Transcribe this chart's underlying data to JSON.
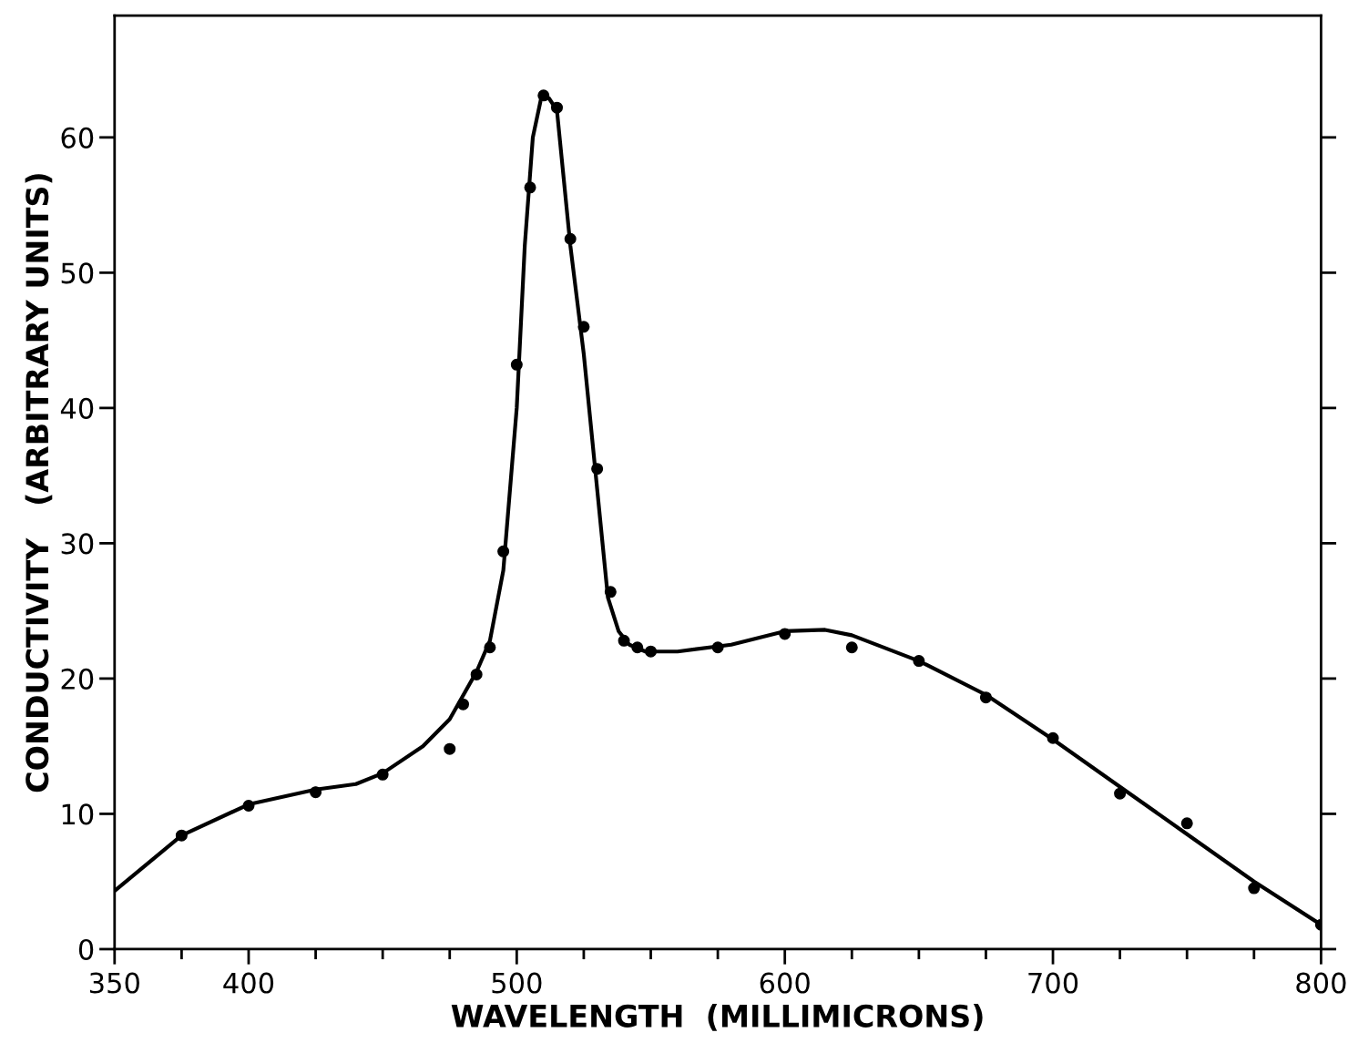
{
  "chart_data": {
    "type": "scatter",
    "xlabel": "WAVELENGTH  (MILLIMICRONS)",
    "ylabel": "CONDUCTIVITY   (ARBITRARY UNITS)",
    "xlim": [
      350,
      800
    ],
    "ylim": [
      0,
      69
    ],
    "xticks": [
      350,
      {
        "value": 375,
        "label": null
      },
      400,
      {
        "value": 425,
        "label": null
      },
      {
        "value": 450,
        "label": null
      },
      {
        "value": 475,
        "label": null
      },
      500,
      {
        "value": 525,
        "label": null
      },
      {
        "value": 550,
        "label": null
      },
      {
        "value": 575,
        "label": null
      },
      600,
      {
        "value": 625,
        "label": null
      },
      {
        "value": 650,
        "label": null
      },
      {
        "value": 675,
        "label": null
      },
      700,
      {
        "value": 725,
        "label": null
      },
      {
        "value": 750,
        "label": null
      },
      {
        "value": 775,
        "label": null
      },
      800
    ],
    "yticks": [
      0,
      10,
      20,
      30,
      40,
      50,
      60
    ],
    "grid": false,
    "legend": false,
    "series": [
      {
        "color": "#000000",
        "marker": "circle",
        "x": [
          375,
          400,
          425,
          450,
          475,
          480,
          485,
          490,
          495,
          500,
          505,
          510,
          515,
          520,
          525,
          530,
          535,
          540,
          545,
          550,
          575,
          600,
          625,
          650,
          675,
          700,
          725,
          750,
          775,
          800
        ],
        "values": [
          8.4,
          10.6,
          11.6,
          12.9,
          14.8,
          18.1,
          20.3,
          22.3,
          29.4,
          43.2,
          56.3,
          63.1,
          62.2,
          52.5,
          46.0,
          35.5,
          26.4,
          22.8,
          22.3,
          22.0,
          22.3,
          23.3,
          22.3,
          21.3,
          18.6,
          15.6,
          11.5,
          9.3,
          4.5,
          1.8
        ]
      },
      {
        "type": "line",
        "color": "#000000",
        "marker": "none",
        "line_style": "solid",
        "x": [
          350,
          375,
          400,
          425,
          440,
          450,
          465,
          475,
          485,
          490,
          495,
          500,
          503,
          506,
          509,
          512,
          515,
          520,
          525,
          530,
          534,
          538,
          542,
          548,
          560,
          580,
          600,
          615,
          625,
          650,
          675,
          700,
          725,
          750,
          775,
          800
        ],
        "values": [
          4.3,
          8.4,
          10.7,
          11.8,
          12.2,
          13.0,
          15.0,
          17.0,
          20.5,
          22.8,
          28.0,
          40.0,
          52.0,
          60.0,
          62.8,
          62.9,
          62.0,
          52.0,
          44.0,
          34.0,
          26.0,
          23.5,
          22.5,
          22.0,
          22.0,
          22.5,
          23.5,
          23.6,
          23.2,
          21.3,
          18.8,
          15.5,
          12.0,
          8.5,
          5.0,
          1.8
        ]
      }
    ]
  }
}
